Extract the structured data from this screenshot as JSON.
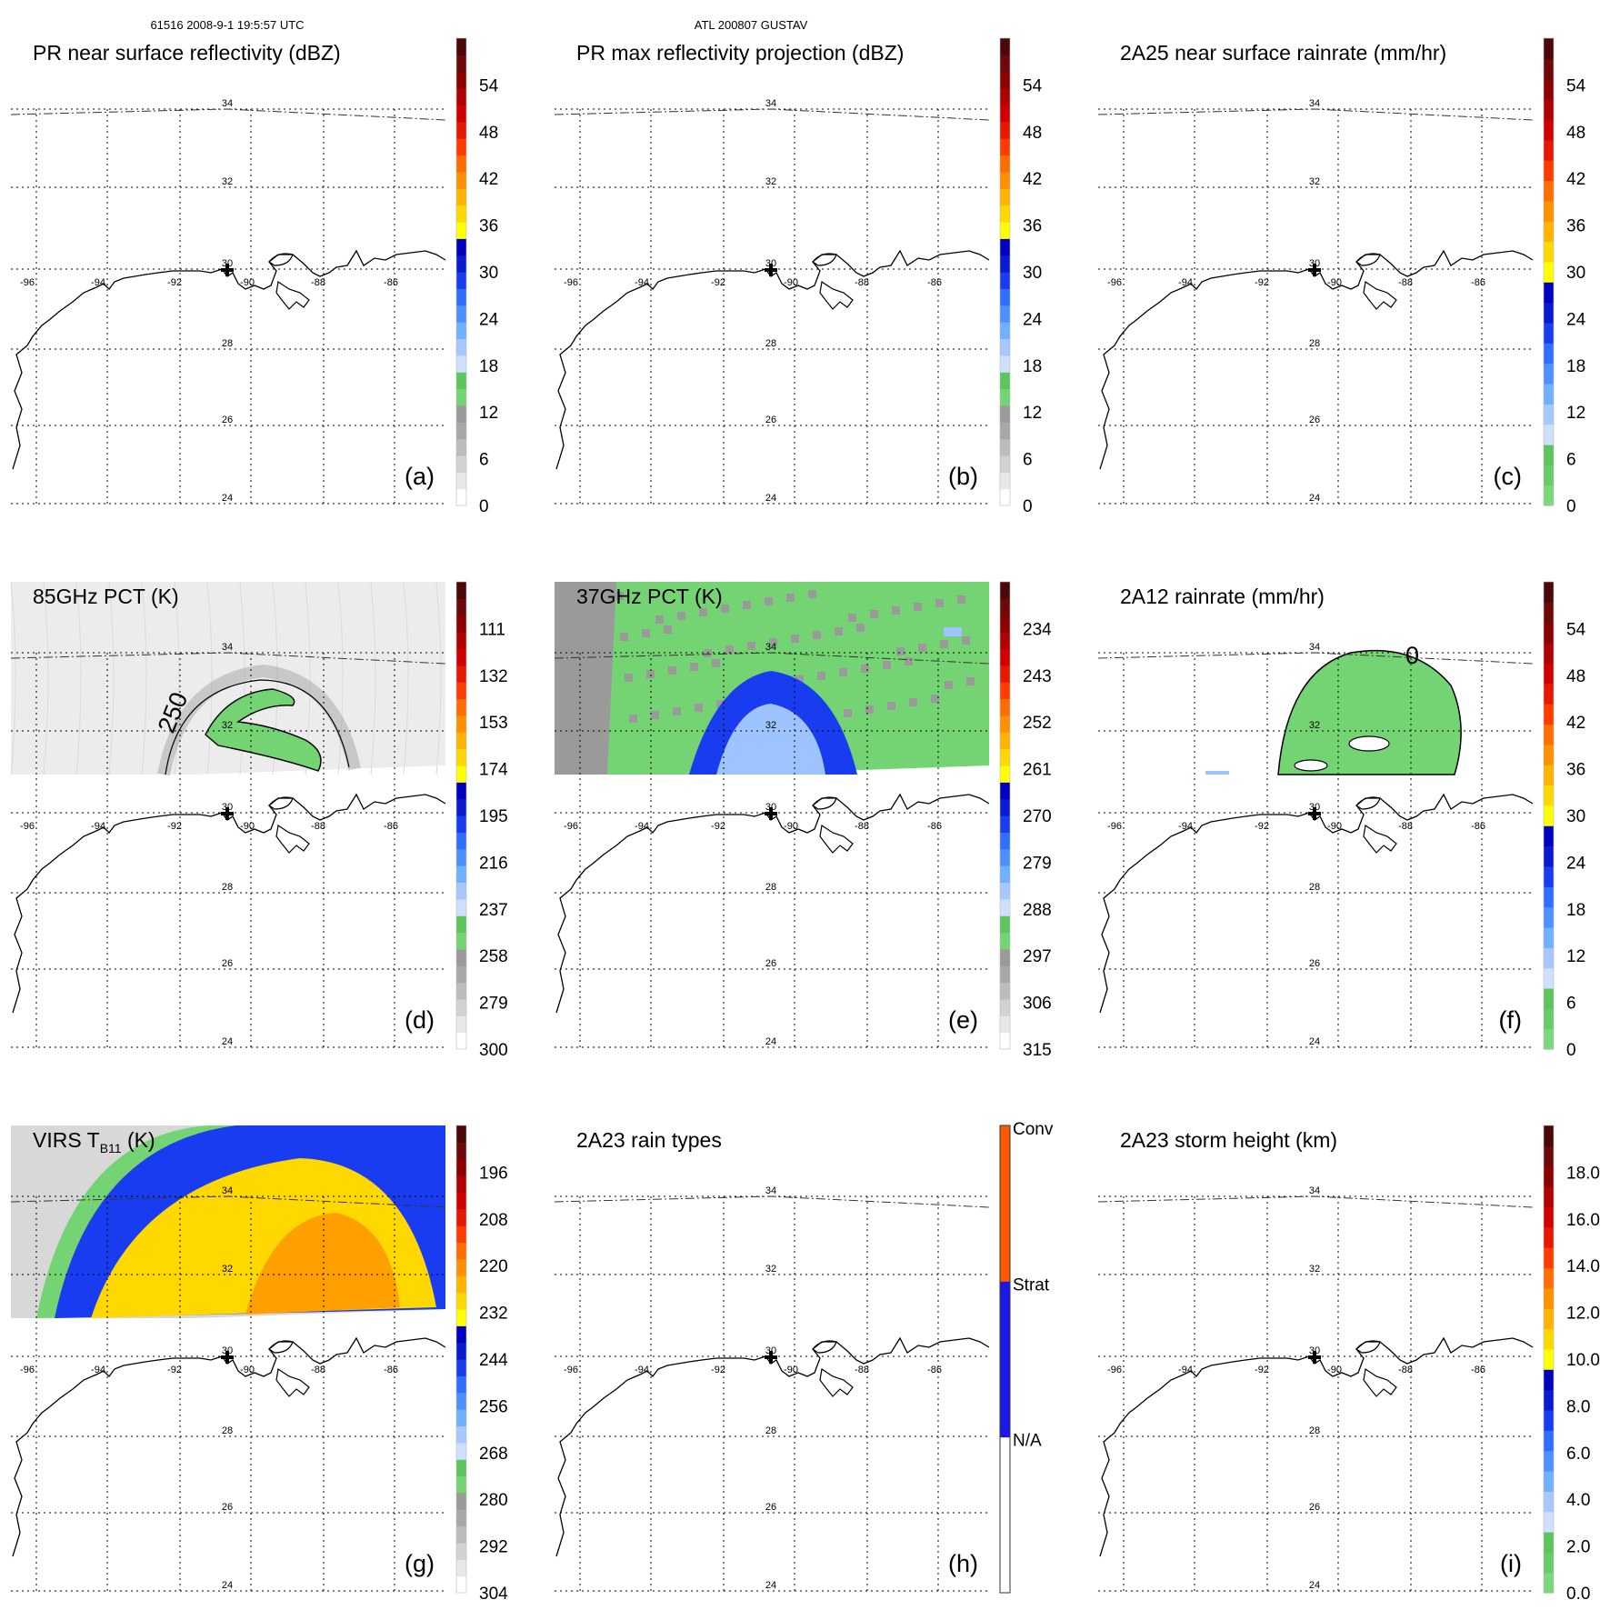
{
  "header": {
    "left": "61516 2008-9-1 19:5:57 UTC",
    "center": "ATL 200807 GUSTAV"
  },
  "lat_labels": [
    "34",
    "32",
    "30",
    "28",
    "26",
    "24"
  ],
  "lon_labels": [
    "-96",
    "-94",
    "-92",
    "-90",
    "-88",
    "-86"
  ],
  "panels": [
    {
      "id": "a",
      "title": "PR near surface reflectivity (dBZ)",
      "label": "(a)",
      "colorbar": "dbz",
      "ticks": [
        "54",
        "48",
        "42",
        "36",
        "30",
        "24",
        "18",
        "12",
        "6",
        "0"
      ],
      "swath": "none"
    },
    {
      "id": "b",
      "title": "PR max reflectivity projection (dBZ)",
      "label": "(b)",
      "colorbar": "dbz",
      "ticks": [
        "54",
        "48",
        "42",
        "36",
        "30",
        "24",
        "18",
        "12",
        "6",
        "0"
      ],
      "swath": "none"
    },
    {
      "id": "c",
      "title": "2A25 near surface rainrate (mm/hr)",
      "label": "(c)",
      "colorbar": "rain",
      "ticks": [
        "54",
        "48",
        "42",
        "36",
        "30",
        "24",
        "18",
        "12",
        "6",
        "0"
      ],
      "swath": "none"
    },
    {
      "id": "d",
      "title": "85GHz PCT (K)",
      "label": "(d)",
      "colorbar": "dbz",
      "ticks": [
        "111",
        "132",
        "153",
        "174",
        "195",
        "216",
        "237",
        "258",
        "279",
        "300"
      ],
      "swath": "pct85",
      "contour_label": "250"
    },
    {
      "id": "e",
      "title": "37GHz PCT (K)",
      "label": "(e)",
      "colorbar": "dbz",
      "ticks": [
        "234",
        "243",
        "252",
        "261",
        "270",
        "279",
        "288",
        "297",
        "306",
        "315"
      ],
      "swath": "pct37"
    },
    {
      "id": "f",
      "title": "2A12 rainrate (mm/hr)",
      "label": "(f)",
      "colorbar": "rain",
      "ticks": [
        "54",
        "48",
        "42",
        "36",
        "30",
        "24",
        "18",
        "12",
        "6",
        "0"
      ],
      "swath": "rain2a12",
      "contour_label": "0"
    },
    {
      "id": "g",
      "title": "VIRS T",
      "title_sub": "B11",
      "title_end": " (K)",
      "label": "(g)",
      "colorbar": "dbz",
      "ticks": [
        "196",
        "208",
        "220",
        "232",
        "244",
        "256",
        "268",
        "280",
        "292",
        "304"
      ],
      "swath": "virs"
    },
    {
      "id": "h",
      "title": "2A23 rain types",
      "label": "(h)",
      "colorbar": "raintype",
      "ticks": [
        "Conv",
        "Strat",
        "N/A"
      ],
      "swath": "none"
    },
    {
      "id": "i",
      "title": "2A23 storm height (km)",
      "label": "(i)",
      "colorbar": "rain",
      "ticks": [
        "18.0",
        "16.0",
        "14.0",
        "12.0",
        "10.0",
        "8.0",
        "6.0",
        "4.0",
        "2.0",
        "0.0"
      ],
      "swath": "none"
    }
  ],
  "colors": {
    "dbz_bar": [
      "#ffffff",
      "#e8e8e8",
      "#d2d2d2",
      "#bcbcbc",
      "#a8a8a8",
      "#9a9a9a",
      "#74d474",
      "#5cc65c",
      "#cfe0ff",
      "#a6c8ff",
      "#6fb0ff",
      "#4d90ff",
      "#2f6fff",
      "#1a3cf0",
      "#0a1ad0",
      "#0000c0",
      "#ffff00",
      "#ffd800",
      "#ffb400",
      "#ff9000",
      "#ff6c00",
      "#ff3c00",
      "#e81800",
      "#d00000",
      "#b00000",
      "#8c0000",
      "#6c0a0a",
      "#4c0808"
    ],
    "rain_bar": [
      "#7cd87c",
      "#66cc66",
      "#5cc65c",
      "#cfe0ff",
      "#a6c8ff",
      "#6fb0ff",
      "#4d90ff",
      "#2f6fff",
      "#1a3cf0",
      "#0a1ad0",
      "#0000c0",
      "#ffff00",
      "#ffd800",
      "#ffb400",
      "#ff9000",
      "#ff6c00",
      "#ff3c00",
      "#e81800",
      "#d00000",
      "#b00000",
      "#8c0000",
      "#6c0a0a",
      "#4c0808"
    ],
    "raintype_bar": [
      "#ffffff",
      "#1a1ae8",
      "#ff5a00"
    ],
    "green": "#74d474",
    "blue": "#1a3cf0",
    "lightblue": "#9ec4ff",
    "yellow": "#ffd800",
    "orange": "#ffa000",
    "gray_dark": "#9a9a9a",
    "gray_light": "#dcdcdc"
  }
}
